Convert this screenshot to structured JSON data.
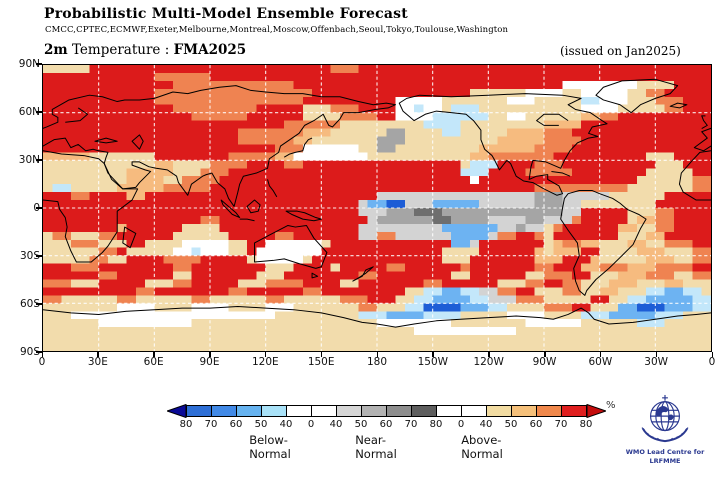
{
  "header": {
    "title": "Probabilistic Multi-Model Ensemble Forecast",
    "models": "CMCC,CPTEC,ECMWF,Exeter,Melbourne,Montreal,Moscow,Offenbach,Seoul,Tokyo,Toulouse,Washington",
    "variable": "2m",
    "variable_rest": " Temperature : ",
    "period": "FMA2025",
    "issued": "(issued on Jan2025)"
  },
  "map": {
    "lat_ticks": [
      "90N",
      "60N",
      "30N",
      "0",
      "30S",
      "60S",
      "90S"
    ],
    "lon_ticks": [
      "0",
      "30E",
      "60E",
      "90E",
      "120E",
      "150E",
      "180",
      "150W",
      "120W",
      "90W",
      "60W",
      "30W",
      "0"
    ]
  },
  "legend": {
    "ticks": [
      "80",
      "70",
      "60",
      "50",
      "40",
      "0",
      "40",
      "50",
      "60",
      "70",
      "80",
      "0",
      "40",
      "50",
      "60",
      "70",
      "80"
    ],
    "segments": [
      "#2e6fd6",
      "#4189e6",
      "#66b3f0",
      "#a9e2f8",
      "#ffffff",
      "#ffffff",
      "#d6d6d6",
      "#b2b2b2",
      "#8e8e8e",
      "#5e5e5e",
      "#ffffff",
      "#ffffff",
      "#f2dca2",
      "#f5c07a",
      "#f0884b",
      "#e01f1f"
    ],
    "left_arrow_color": "#0a0a96",
    "right_arrow_color": "#c40d0d",
    "categories": [
      "Below-Normal",
      "Near-Normal",
      "Above-Normal"
    ],
    "percent_label": "%"
  },
  "logo": {
    "line1": "WMO Lead Centre for",
    "line2": "LRFMME"
  },
  "chart_data": {
    "type": "heatmap",
    "title": "Probabilistic Multi-Model Ensemble Forecast - 2m Temperature FMA2025",
    "grid_cols": 72,
    "grid_rows": 36,
    "lon_range": [
      0,
      360
    ],
    "lat_range": [
      90,
      -90
    ],
    "palette": {
      ".": "#f2dcac",
      "o": "#f6bb7f",
      "s": "#ef8351",
      "R": "#dc1b1b",
      "w": "#ffffff",
      "c": "#c3e7fa",
      "b": "#6db3f2",
      "B": "#1d5dd6",
      "g": "#d3d3d3",
      "G": "#a5a5a5",
      "D": "#6e6e6e"
    },
    "palette_meaning": {
      ".": "above-normal 40-50%",
      "o": "above-normal 50-60%",
      "s": "above-normal 60-70%",
      "R": "above-normal 70-80%+",
      "w": "no dominant category / white",
      "g": "near-normal 40-50%",
      "G": "near-normal 50-60%",
      "D": "near-normal 60-70%",
      "c": "below-normal 40-50%",
      "b": "below-normal 50-60%",
      "B": "below-normal 60-80%"
    },
    "rows_rle": [
      "5.26R3s38R",
      "12R6s54R",
      "14R13s29R8w4.4R",
      "12R17s17R6.4w2.5w2.2s5R",
      "12R16s10R5w7.3w5.2c3w3.3s3R",
      "14R9s5R3.3s4R2w1c2w1.3c11.4w5.2s3R",
      "16R6s6R4.4s2R4w6c2.2w6.2o2s10R",
      "26R6s9.4c9.4o14R",
      "21R7s3o6.2G4.2c5.4o3s15R",
      "21R6s2o7.3G10.5o4s14R",
      "25R3s6w2.2G9.6o4s15R",
      "5o7.8R5s2o8w11.2o7s10R3.4R",
      "12.2o4.4s4R2s17R1.3c4R3s10R3.3R",
      "9.5o3.3s25R3c4R5s8R5.2R",
      "9.4o2.4s27R1w17R6.2s",
      "1.2c5.5o5s35R10s7.2s",
      "3R2s4R2o25R17g3G5g6.5R",
      "34R1g2b2B3g5b6g3G2g8.6R",
      "34R3g3G3D13G2g5R3.2s4R",
      "17R2s16R1g6G2D4G4g2G3g1s5R1.2o2s4R",
      "8R1o6R4.15R9g6b2g1G2g1.1s6R2o2.2s4R",
      "1.2s3.2s6R6.5R2s7R2g2s6g4b1g2s2R1s1.7R3.2o5R",
      "3.3s3.2R4.5w2.2R6w1.13R2b1g7R1.1o2s2o3.2o2.3s2R",
      "6.2s1R5.2w1c3w2.1R7w13R4.6R1o1.1o2o2R4.3o3.2s",
      "5.2s2.4R4s5R1.5w1.14R3.7R3o3R1o5.3o2.2s",
      "3R3s8R2s8R3.4R1.5R2s6R1s7R2s3R2o3s3o4s2R",
      "6R2s6R2.7R3.8R2s8R2.6R2.3s2R3.3o3s2.2s",
      "3s3.5R3.2s5R3.4s4R2.7R2s6R3.2s2R2s3.3o3.2o3.",
      "10R2s8R2s6R2s9R2.2c2b2c2g2s2R3.2s2.2o3.2c2b2c1.",
      "2s6.2s6.2s6.2s6.3s3R2.2c4b2c3g3s5.2R2.2c5b2c",
      "8.4w4.4w4.3w7.2s3.2c4B3b2c4.3s2R3.2b3B3b2c",
      "3.22w9.3c4b4c5.4w4.3c5b3c3.",
      "6.10w20.8w8.6w6.3c5.",
      "40.11w21.",
      "72.",
      "72."
    ]
  }
}
